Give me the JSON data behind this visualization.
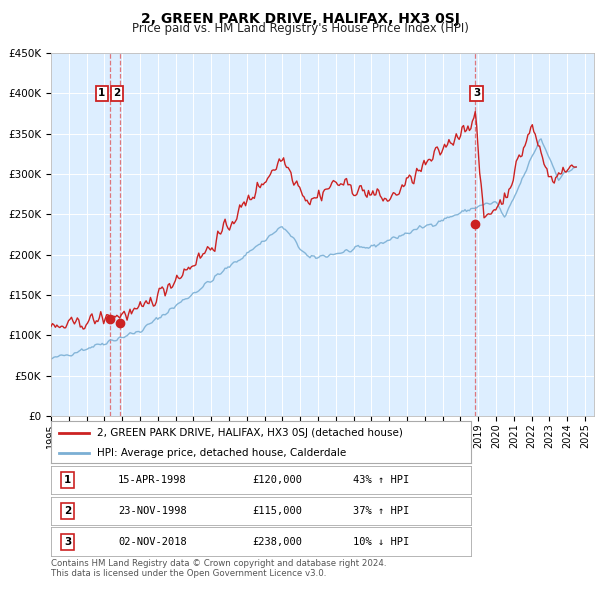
{
  "title": "2, GREEN PARK DRIVE, HALIFAX, HX3 0SJ",
  "subtitle": "Price paid vs. HM Land Registry's House Price Index (HPI)",
  "ylim": [
    0,
    450000
  ],
  "yticks": [
    0,
    50000,
    100000,
    150000,
    200000,
    250000,
    300000,
    350000,
    400000,
    450000
  ],
  "ytick_labels": [
    "£0",
    "£50K",
    "£100K",
    "£150K",
    "£200K",
    "£250K",
    "£300K",
    "£350K",
    "£400K",
    "£450K"
  ],
  "xlim_start": 1995.0,
  "xlim_end": 2025.5,
  "hpi_color": "#7bafd4",
  "price_color": "#cc2222",
  "plot_bg": "#ddeeff",
  "legend_label_price": "2, GREEN PARK DRIVE, HALIFAX, HX3 0SJ (detached house)",
  "legend_label_hpi": "HPI: Average price, detached house, Calderdale",
  "transactions": [
    {
      "num": "1",
      "date": "15-APR-1998",
      "price": "£120,000",
      "pct": "43%",
      "dir": "↑",
      "year": 1998.29,
      "value": 120000
    },
    {
      "num": "2",
      "date": "23-NOV-1998",
      "price": "£115,000",
      "pct": "37%",
      "dir": "↑",
      "year": 1998.9,
      "value": 115000
    },
    {
      "num": "3",
      "date": "02-NOV-2018",
      "price": "£238,000",
      "pct": "10%",
      "dir": "↓",
      "year": 2018.84,
      "value": 238000
    }
  ],
  "footnote1": "Contains HM Land Registry data © Crown copyright and database right 2024.",
  "footnote2": "This data is licensed under the Open Government Licence v3.0."
}
